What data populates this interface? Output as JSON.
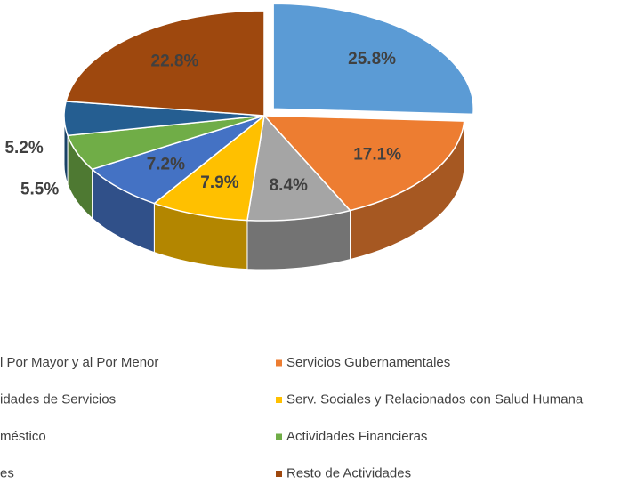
{
  "chart_data": {
    "type": "pie",
    "categories": [
      "l Por Mayor y al Por Menor",
      "Servicios Gubernamentales",
      "idades de Servicios",
      "Serv. Sociales y Relacionados con Salud Humana",
      "méstico",
      "Actividades Financieras",
      "es",
      "Resto de Actividades"
    ],
    "values": [
      25.8,
      17.1,
      8.4,
      7.9,
      7.2,
      5.5,
      5.2,
      22.8
    ],
    "value_labels": [
      "25.8%",
      "17.1%",
      "8.4%",
      "7.9%",
      "7.2%",
      "5.5%",
      "5.2%",
      "22.8%"
    ],
    "colors": [
      "#5b9bd5",
      "#ed7d31",
      "#a5a5a5",
      "#ffc000",
      "#4472c4",
      "#70ad47",
      "#255e91",
      "#9e480e"
    ]
  }
}
